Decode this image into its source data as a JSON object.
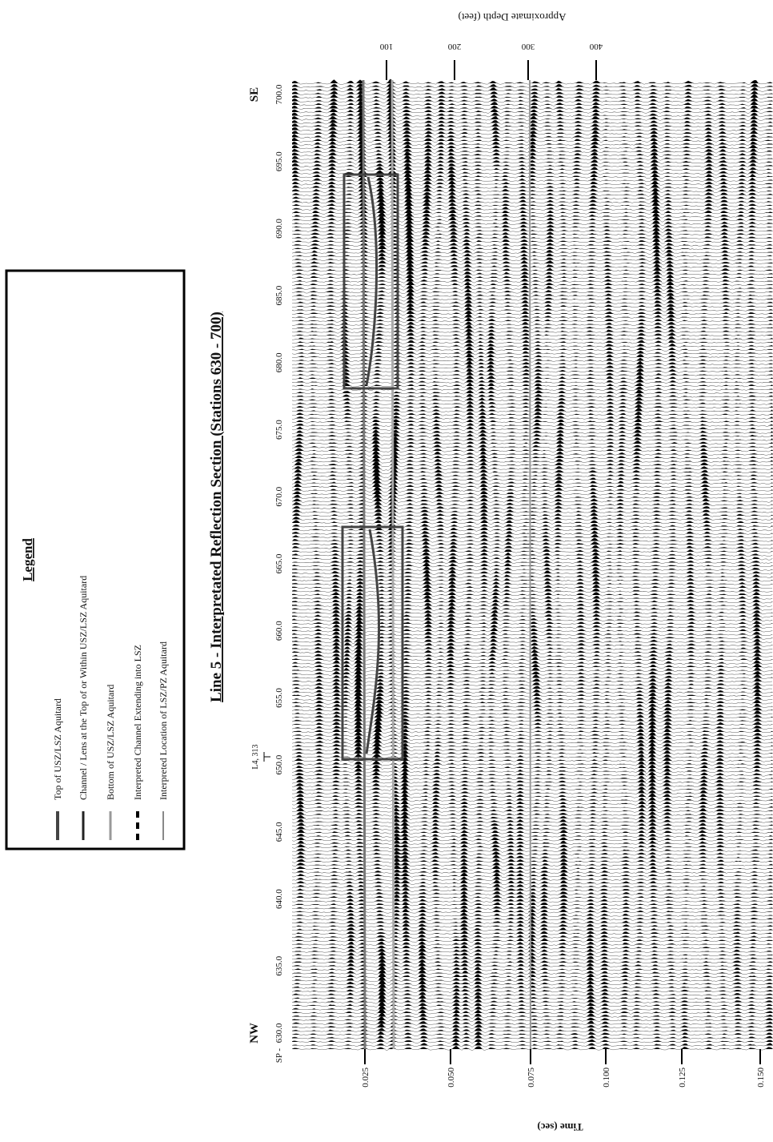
{
  "header": {
    "title": "Line 5 - Interpretated Reflection Section (Stations 630 - 700)"
  },
  "legend": {
    "title": "Legend",
    "entries": [
      "Top of USZ/LSZ Aquitard",
      "Channel / Lens at the Top of or Within USZ/LSZ Aquitard",
      "Bottom of USZ/LSZ Aquitard",
      "Interpreted Channel Extending into LSZ",
      "Interpreted Location of LSZ/PZ Aquitard"
    ]
  },
  "section": {
    "left_direction": "NW",
    "right_direction": "SE",
    "station_prefix": "SP -",
    "stations": [
      "630.0",
      "635.0",
      "640.0",
      "645.0",
      "650.0",
      "655.0",
      "660.0",
      "665.0",
      "670.0",
      "675.0",
      "680.0",
      "685.0",
      "690.0",
      "695.0",
      "700.0"
    ],
    "marker": "L4, 313",
    "time_axis": {
      "title": "Time (sec)",
      "ticks": [
        "0.025",
        "0.050",
        "0.075",
        "0.100",
        "0.125",
        "0.150"
      ]
    },
    "depth_axis": {
      "title": "Approximate Depth (feet)",
      "ticks": [
        "100",
        "200",
        "300",
        "400"
      ]
    }
  }
}
